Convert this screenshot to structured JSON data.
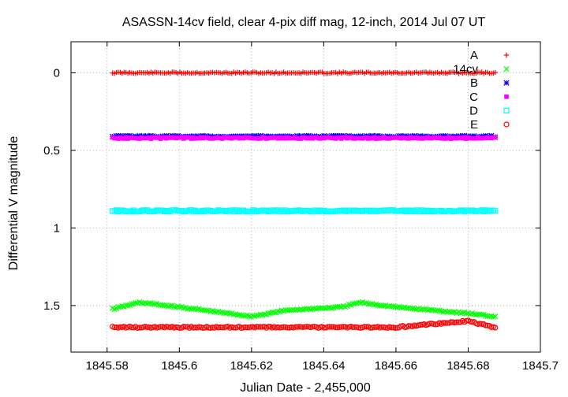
{
  "chart_data": {
    "type": "scatter",
    "title": "ASASSN-14cv field, clear 4-pix diff mag, 12-inch, 2014 Jul 07 UT",
    "xlabel": "Julian Date - 2,455,000",
    "ylabel": "Differential V magnitude",
    "xlim": [
      1845.57,
      1845.7
    ],
    "ylim": [
      1.8,
      -0.2
    ],
    "y_inverted": true,
    "x_ticks": [
      "1845.58",
      "1845.6",
      "1845.62",
      "1845.64",
      "1845.66",
      "1845.68",
      "1845.7"
    ],
    "y_ticks": [
      "0",
      "0.5",
      "1",
      "1.5"
    ],
    "legend_position": "top-right",
    "x_range_of_points": [
      1845.5815,
      1845.6875
    ],
    "series": [
      {
        "name": "A",
        "color": "#ff0000",
        "marker": "plus",
        "x": [
          1845.582,
          1845.595,
          1845.61,
          1845.63,
          1845.65,
          1845.67,
          1845.687
        ],
        "y": [
          0.0,
          0.0,
          0.0,
          0.0,
          0.0,
          0.0,
          0.0
        ]
      },
      {
        "name": "14cv",
        "color": "#00ff00",
        "marker": "cross",
        "x": [
          1845.582,
          1845.589,
          1845.6,
          1845.61,
          1845.62,
          1845.63,
          1845.645,
          1845.65,
          1845.66,
          1845.67,
          1845.68,
          1845.687
        ],
        "y": [
          1.52,
          1.48,
          1.51,
          1.54,
          1.57,
          1.53,
          1.51,
          1.48,
          1.51,
          1.53,
          1.55,
          1.57
        ]
      },
      {
        "name": "B",
        "color": "#0000ff",
        "marker": "star",
        "x": [
          1845.582,
          1845.6,
          1845.62,
          1845.64,
          1845.66,
          1845.687
        ],
        "y": [
          0.41,
          0.41,
          0.41,
          0.41,
          0.41,
          0.41
        ]
      },
      {
        "name": "C",
        "color": "#ff00ff",
        "marker": "filled-square",
        "x": [
          1845.582,
          1845.6,
          1845.62,
          1845.64,
          1845.66,
          1845.687
        ],
        "y": [
          0.42,
          0.42,
          0.42,
          0.42,
          0.42,
          0.42
        ]
      },
      {
        "name": "D",
        "color": "#00ffff",
        "marker": "open-square",
        "x": [
          1845.582,
          1845.6,
          1845.62,
          1845.64,
          1845.66,
          1845.687
        ],
        "y": [
          0.89,
          0.89,
          0.89,
          0.89,
          0.89,
          0.89
        ]
      },
      {
        "name": "E",
        "color": "#ff0000",
        "marker": "open-circle",
        "x": [
          1845.582,
          1845.6,
          1845.62,
          1845.64,
          1845.66,
          1845.68,
          1845.687
        ],
        "y": [
          1.64,
          1.64,
          1.64,
          1.64,
          1.64,
          1.6,
          1.64
        ]
      }
    ]
  }
}
